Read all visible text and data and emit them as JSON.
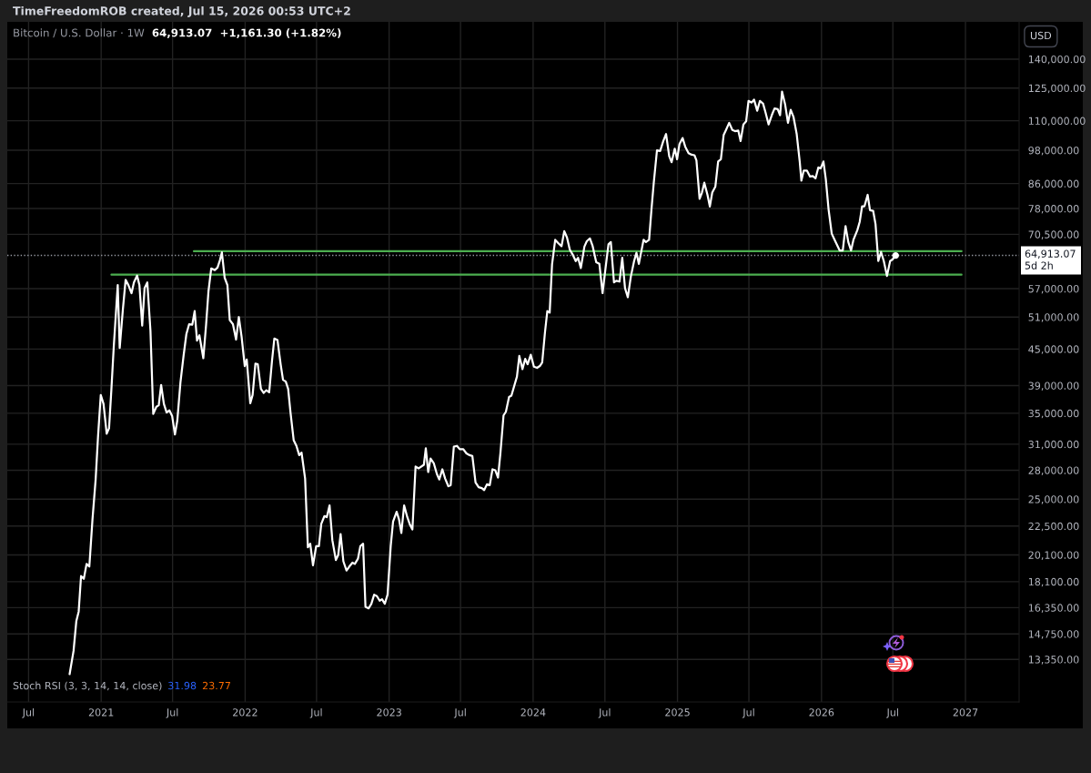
{
  "chart_data": {
    "type": "line",
    "title": "Bitcoin / U.S. Dollar · 1W",
    "subtitle": "64,913.07  +1,161.30 (+1.82%)",
    "annotations": [
      "TimeFreedomROB created, Jul 15, 2026 00:53 UTC+2",
      "5d 2h",
      "USD",
      "Stoch RSI (3, 3, 14, 14, close)",
      "31.98",
      "23.77"
    ],
    "log": "y",
    "grid": true,
    "xlim": [
      "2020-05-08",
      "2027-05-17"
    ],
    "ylim": [
      11300,
      162000
    ],
    "xticks": [
      {
        "value": "2020-07",
        "label": "Jul"
      },
      {
        "value": "2021",
        "label": "2021"
      },
      {
        "value": "2021-07",
        "label": "Jul"
      },
      {
        "value": "2022",
        "label": "2022"
      },
      {
        "value": "2022-07",
        "label": "Jul"
      },
      {
        "value": "2023",
        "label": "2023"
      },
      {
        "value": "2023-07",
        "label": "Jul"
      },
      {
        "value": "2024",
        "label": "2024"
      },
      {
        "value": "2024-07",
        "label": "Jul"
      },
      {
        "value": "2025",
        "label": "2025"
      },
      {
        "value": "2025-07",
        "label": "Jul"
      },
      {
        "value": "2026",
        "label": "2026"
      },
      {
        "value": "2026-07",
        "label": "Jul"
      },
      {
        "value": "2027",
        "label": "2027"
      }
    ],
    "yticks": [
      {
        "value": 13350,
        "label": "13,350.00"
      },
      {
        "value": 14750,
        "label": "14,750.00"
      },
      {
        "value": 16350,
        "label": "16,350.00"
      },
      {
        "value": 18100,
        "label": "18,100.00"
      },
      {
        "value": 20100,
        "label": "20,100.00"
      },
      {
        "value": 22500,
        "label": "22,500.00"
      },
      {
        "value": 25000,
        "label": "25,000.00"
      },
      {
        "value": 28000,
        "label": "28,000.00"
      },
      {
        "value": 31000,
        "label": "31,000.00"
      },
      {
        "value": 35000,
        "label": "35,000.00"
      },
      {
        "value": 39000,
        "label": "39,000.00"
      },
      {
        "value": 45000,
        "label": "45,000.00"
      },
      {
        "value": 51000,
        "label": "51,000.00"
      },
      {
        "value": 57000,
        "label": "57,000.00"
      },
      {
        "value": 70500,
        "label": "70,500.00"
      },
      {
        "value": 78000,
        "label": "78,000.00"
      },
      {
        "value": 86000,
        "label": "86,000.00"
      },
      {
        "value": 98000,
        "label": "98,000.00"
      },
      {
        "value": 110000,
        "label": "110,000.00"
      },
      {
        "value": 125000,
        "label": "125,000.00"
      },
      {
        "value": 140000,
        "label": "140,000.00"
      }
    ],
    "ref_lines": [
      {
        "axis": "y",
        "value": 64913.07,
        "label": "64,913.07",
        "color": "#9598a1",
        "line_style": "dotted"
      }
    ],
    "series": [
      {
        "color": "#4caf50",
        "x": [
          "2021-01-27",
          "2026-12-22"
        ],
        "values": [
          60200,
          60200
        ]
      },
      {
        "color": "#4caf50",
        "x": [
          "2021-08-24",
          "2026-12-22"
        ],
        "values": [
          66000,
          66000
        ]
      },
      {
        "color": "#ffffff",
        "x": [
          "2020-10-13",
          "2020-10-23",
          "2020-10-30",
          "2020-11-05",
          "2020-11-11",
          "2020-11-18",
          "2020-11-25",
          "2020-12-02",
          "2020-12-10",
          "2020-12-18",
          "2020-12-24",
          "2020-12-31",
          "2021-01-07",
          "2021-01-15",
          "2021-01-21",
          "2021-01-27",
          "2021-02-02",
          "2021-02-12",
          "2021-02-17",
          "2021-02-25",
          "2021-03-04",
          "2021-03-11",
          "2021-03-19",
          "2021-03-25",
          "2021-04-02",
          "2021-04-08",
          "2021-04-15",
          "2021-04-21",
          "2021-04-28",
          "2021-05-06",
          "2021-05-13",
          "2021-05-21",
          "2021-05-27",
          "2021-06-02",
          "2021-06-09",
          "2021-06-16",
          "2021-06-23",
          "2021-06-30",
          "2021-07-07",
          "2021-07-13",
          "2021-07-21",
          "2021-07-29",
          "2021-08-05",
          "2021-08-12",
          "2021-08-20",
          "2021-08-26",
          "2021-09-01",
          "2021-09-07",
          "2021-09-17",
          "2021-09-24",
          "2021-09-30",
          "2021-10-07",
          "2021-10-16",
          "2021-10-23",
          "2021-10-29",
          "2021-11-03",
          "2021-11-10",
          "2021-11-17",
          "2021-11-23",
          "2021-12-01",
          "2021-12-09",
          "2021-12-16",
          "2021-12-23",
          "2021-12-31",
          "2022-01-05",
          "2022-01-14",
          "2022-01-20",
          "2022-01-27",
          "2022-02-02",
          "2022-02-10",
          "2022-02-17",
          "2022-02-24",
          "2022-03-03",
          "2022-03-10",
          "2022-03-16",
          "2022-03-24",
          "2022-04-01",
          "2022-04-07",
          "2022-04-14",
          "2022-04-20",
          "2022-04-26",
          "2022-05-04",
          "2022-05-11",
          "2022-05-18",
          "2022-05-24",
          "2022-06-02",
          "2022-06-09",
          "2022-06-15",
          "2022-06-22",
          "2022-06-30",
          "2022-07-07",
          "2022-07-13",
          "2022-07-21",
          "2022-07-27",
          "2022-08-03",
          "2022-08-10",
          "2022-08-19",
          "2022-08-25",
          "2022-08-31",
          "2022-09-07",
          "2022-09-15",
          "2022-09-22",
          "2022-09-30",
          "2022-10-06",
          "2022-10-14",
          "2022-10-20",
          "2022-10-27",
          "2022-11-02",
          "2022-11-10",
          "2022-11-17",
          "2022-11-24",
          "2022-12-01",
          "2022-12-08",
          "2022-12-14",
          "2022-12-21",
          "2022-12-28",
          "2023-01-05",
          "2023-01-11",
          "2023-01-20",
          "2023-01-26",
          "2023-02-01",
          "2023-02-08",
          "2023-02-16",
          "2023-02-23",
          "2023-03-01",
          "2023-03-09",
          "2023-03-17",
          "2023-03-30",
          "2023-04-04",
          "2023-04-10",
          "2023-04-16",
          "2023-04-24",
          "2023-05-02",
          "2023-05-08",
          "2023-05-16",
          "2023-05-23",
          "2023-05-31",
          "2023-06-06",
          "2023-06-14",
          "2023-06-22",
          "2023-06-29",
          "2023-07-08",
          "2023-07-16",
          "2023-07-24",
          "2023-07-31",
          "2023-08-08",
          "2023-08-16",
          "2023-08-24",
          "2023-08-30",
          "2023-09-06",
          "2023-09-13",
          "2023-09-20",
          "2023-09-27",
          "2023-10-04",
          "2023-10-10",
          "2023-10-18",
          "2023-10-24",
          "2023-11-01",
          "2023-11-07",
          "2023-11-21",
          "2023-11-27",
          "2023-12-05",
          "2023-12-12",
          "2023-12-18",
          "2023-12-26",
          "2024-01-03",
          "2024-01-11",
          "2024-01-18",
          "2024-01-24",
          "2024-01-31",
          "2024-02-06",
          "2024-02-12",
          "2024-02-18",
          "2024-02-26",
          "2024-03-04",
          "2024-03-13",
          "2024-03-20",
          "2024-03-27",
          "2024-04-03",
          "2024-04-10",
          "2024-04-18",
          "2024-04-24",
          "2024-05-01",
          "2024-05-10",
          "2024-05-16",
          "2024-05-24",
          "2024-05-31",
          "2024-06-09",
          "2024-06-17",
          "2024-06-25",
          "2024-07-02",
          "2024-07-10",
          "2024-07-16",
          "2024-07-24",
          "2024-07-30",
          "2024-08-07",
          "2024-08-14",
          "2024-08-21",
          "2024-08-28",
          "2024-09-05",
          "2024-09-13",
          "2024-09-19",
          "2024-09-25",
          "2024-10-07",
          "2024-10-13",
          "2024-10-21",
          "2024-10-27",
          "2024-11-02",
          "2024-11-10",
          "2024-11-18",
          "2024-11-26",
          "2024-12-03",
          "2024-12-11",
          "2024-12-17",
          "2024-12-25",
          "2024-12-31",
          "2025-01-06",
          "2025-01-14",
          "2025-01-21",
          "2025-01-29",
          "2025-02-06",
          "2025-02-13",
          "2025-02-18",
          "2025-02-26",
          "2025-03-04",
          "2025-03-10",
          "2025-03-18",
          "2025-03-24",
          "2025-03-30",
          "2025-04-07",
          "2025-04-14",
          "2025-04-21",
          "2025-04-28",
          "2025-05-04",
          "2025-05-12",
          "2025-05-20",
          "2025-05-27",
          "2025-06-04",
          "2025-06-10",
          "2025-06-17",
          "2025-06-24",
          "2025-06-30",
          "2025-07-08",
          "2025-07-14",
          "2025-07-22",
          "2025-07-29",
          "2025-08-06",
          "2025-08-12",
          "2025-08-20",
          "2025-08-28",
          "2025-09-04",
          "2025-09-12",
          "2025-09-18",
          "2025-09-23",
          "2025-10-01",
          "2025-10-08",
          "2025-10-15",
          "2025-10-22",
          "2025-10-30",
          "2025-11-07",
          "2025-11-11",
          "2025-11-17",
          "2025-11-25",
          "2025-12-03",
          "2025-12-10",
          "2025-12-17",
          "2025-12-24",
          "2025-12-30",
          "2026-01-06",
          "2026-01-12",
          "2026-01-19",
          "2026-01-27",
          "2026-02-05",
          "2026-02-16",
          "2026-02-24",
          "2026-03-03",
          "2026-03-10",
          "2026-03-17",
          "2026-03-23",
          "2026-04-02",
          "2026-04-08",
          "2026-04-14",
          "2026-04-20",
          "2026-04-28",
          "2026-05-04",
          "2026-05-12",
          "2026-05-18",
          "2026-05-25",
          "2026-06-01",
          "2026-06-08",
          "2026-06-16",
          "2026-06-24",
          "2026-06-30",
          "2026-07-08"
        ],
        "values": [
          12600,
          13800,
          15500,
          16100,
          18500,
          18300,
          19400,
          19200,
          23100,
          27000,
          31900,
          37600,
          36300,
          32300,
          33000,
          38500,
          45500,
          57800,
          45200,
          52500,
          59000,
          57800,
          56000,
          58400,
          60000,
          57800,
          49300,
          57100,
          58400,
          48300,
          34900,
          35900,
          36100,
          39100,
          36300,
          35100,
          35400,
          34600,
          32200,
          34000,
          39500,
          43900,
          47700,
          49600,
          49500,
          52200,
          46500,
          47500,
          43400,
          49500,
          56400,
          61700,
          61300,
          61900,
          63700,
          65700,
          59500,
          57800,
          50400,
          49600,
          46700,
          51000,
          47200,
          42100,
          43200,
          36400,
          37600,
          42500,
          42400,
          38500,
          37900,
          38300,
          38000,
          42900,
          46900,
          46600,
          42400,
          39900,
          39600,
          38500,
          35100,
          31500,
          30800,
          29700,
          30000,
          27100,
          20700,
          21000,
          19300,
          20800,
          20800,
          22700,
          23400,
          23300,
          24400,
          21300,
          19700,
          20100,
          21800,
          19600,
          18900,
          19200,
          19500,
          19400,
          19800,
          20800,
          21000,
          16400,
          16300,
          16600,
          17200,
          17100,
          16800,
          16900,
          16600,
          17200,
          20800,
          22900,
          23800,
          23100,
          21900,
          24400,
          23300,
          22600,
          22200,
          28400,
          28200,
          28600,
          30500,
          27800,
          29300,
          28800,
          27600,
          27000,
          28100,
          27100,
          26300,
          26400,
          30700,
          30800,
          30400,
          30400,
          29900,
          29700,
          29600,
          26700,
          26200,
          26100,
          25900,
          26500,
          26400,
          28100,
          28000,
          27200,
          29900,
          34700,
          35200,
          37300,
          37500,
          40400,
          43800,
          41600,
          43300,
          42400,
          44000,
          42000,
          41800,
          42100,
          42700,
          48000,
          52200,
          51900,
          62700,
          69000,
          68200,
          67300,
          71400,
          69600,
          66400,
          65200,
          63500,
          64300,
          61800,
          67200,
          68600,
          69400,
          67300,
          63200,
          62800,
          56000,
          61300,
          67800,
          68400,
          58400,
          58800,
          58600,
          64300,
          57100,
          55100,
          59900,
          63500,
          65600,
          62800,
          69000,
          68400,
          69000,
          77700,
          86500,
          98000,
          97700,
          101600,
          104400,
          95700,
          93500,
          98600,
          94600,
          100400,
          102800,
          99200,
          96900,
          96300,
          96100,
          94200,
          81000,
          83000,
          86300,
          82300,
          78600,
          83000,
          85000,
          93800,
          94600,
          104000,
          106100,
          109100,
          106100,
          105600,
          105900,
          101600,
          108400,
          109700,
          118900,
          118100,
          119500,
          114400,
          118900,
          117600,
          113700,
          108400,
          112400,
          115400,
          115100,
          112400,
          123300,
          117100,
          109100,
          114800,
          111700,
          104600,
          93500,
          87000,
          90500,
          90500,
          88400,
          88600,
          87800,
          91600,
          91300,
          93800,
          87500,
          77700,
          70700,
          68600,
          66200,
          66200,
          72800,
          68400,
          66200,
          69000,
          71700,
          74100,
          78700,
          78700,
          82300,
          77500,
          77300,
          73400,
          63500,
          65800,
          63500,
          59900,
          63500,
          63900,
          64913.07
        ]
      },
      {
        "type": "scatter",
        "color": "#ffffff",
        "marker": "circle",
        "x": [
          "2026-07-08"
        ],
        "values": [
          64913.07
        ]
      }
    ]
  }
}
